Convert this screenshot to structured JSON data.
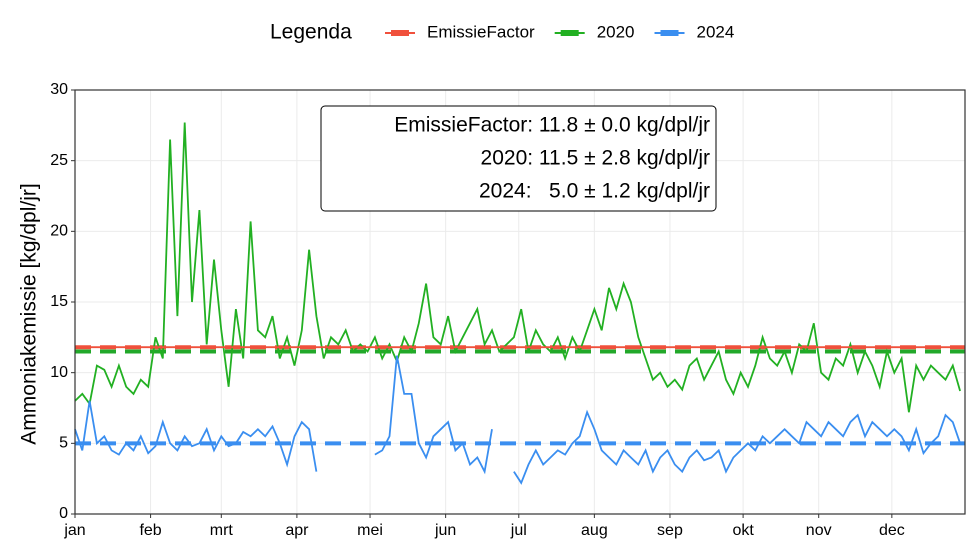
{
  "chart_data": {
    "type": "line",
    "legend_title": "Legenda",
    "y_label": "Ammoniakemissie [kg/dpl/jr]",
    "annotations": [
      "EmissieFactor: 11.8 ± 0.0 kg/dpl/jr",
      "2020: 11.5 ± 2.8 kg/dpl/jr",
      "2024:   5.0 ± 1.2 kg/dpl/jr"
    ],
    "xlim": [
      1,
      366
    ],
    "ylim": [
      0,
      30
    ],
    "yticks": [
      0,
      5,
      10,
      15,
      20,
      25,
      30
    ],
    "xticks": [
      {
        "value": 1,
        "label": "jan"
      },
      {
        "value": 32,
        "label": "feb"
      },
      {
        "value": 61,
        "label": "mrt"
      },
      {
        "value": 92,
        "label": "apr"
      },
      {
        "value": 122,
        "label": "mei"
      },
      {
        "value": 153,
        "label": "jun"
      },
      {
        "value": 183,
        "label": "jul"
      },
      {
        "value": 214,
        "label": "aug"
      },
      {
        "value": 245,
        "label": "sep"
      },
      {
        "value": 275,
        "label": "okt"
      },
      {
        "value": 306,
        "label": "nov"
      },
      {
        "value": 336,
        "label": "dec"
      }
    ],
    "grid": true,
    "hlines": [
      {
        "value": 11.8,
        "color": "#f0503c"
      },
      {
        "value": 11.5,
        "color": "#22a82a"
      },
      {
        "value": 5.0,
        "color": "#3a8ef0"
      }
    ],
    "x": [
      1,
      4,
      7,
      10,
      13,
      16,
      19,
      22,
      25,
      28,
      31,
      34,
      37,
      40,
      43,
      46,
      49,
      52,
      55,
      58,
      61,
      64,
      67,
      70,
      73,
      76,
      79,
      82,
      85,
      88,
      91,
      94,
      97,
      100,
      103,
      106,
      109,
      112,
      115,
      118,
      121,
      124,
      127,
      130,
      133,
      136,
      139,
      142,
      145,
      148,
      151,
      154,
      157,
      160,
      163,
      166,
      169,
      172,
      175,
      178,
      181,
      184,
      187,
      190,
      193,
      196,
      199,
      202,
      205,
      208,
      211,
      214,
      217,
      220,
      223,
      226,
      229,
      232,
      235,
      238,
      241,
      244,
      247,
      250,
      253,
      256,
      259,
      262,
      265,
      268,
      271,
      274,
      277,
      280,
      283,
      286,
      289,
      292,
      295,
      298,
      301,
      304,
      307,
      310,
      313,
      316,
      319,
      322,
      325,
      328,
      331,
      334,
      337,
      340,
      343,
      346,
      349,
      352,
      355,
      358,
      361,
      364
    ],
    "series": [
      {
        "name": "EmissieFactor",
        "color": "#f0503c",
        "x": [
          1,
          366
        ],
        "values": [
          11.8,
          11.8
        ]
      },
      {
        "name": "2020",
        "color": "#22b022",
        "values": [
          8.0,
          8.5,
          7.8,
          10.5,
          10.2,
          9.0,
          10.5,
          9.0,
          8.5,
          9.5,
          9.0,
          12.5,
          11.0,
          26.5,
          14.0,
          27.7,
          15.0,
          21.5,
          12.0,
          18.0,
          13.0,
          9.0,
          14.5,
          11.0,
          20.7,
          13.0,
          12.5,
          14.0,
          11.0,
          12.5,
          10.5,
          13.0,
          18.7,
          14.0,
          11.0,
          12.5,
          12.0,
          13.0,
          11.5,
          12.0,
          11.5,
          12.5,
          11.0,
          12.0,
          10.8,
          12.5,
          11.5,
          13.5,
          16.3,
          12.5,
          12.0,
          14.0,
          11.5,
          12.5,
          13.5,
          14.5,
          12.0,
          13.0,
          11.5,
          12.0,
          12.5,
          14.5,
          11.5,
          13.0,
          12.0,
          11.5,
          12.5,
          11.0,
          12.5,
          11.5,
          13.0,
          14.5,
          13.0,
          16.0,
          14.5,
          16.3,
          15.0,
          12.5,
          11.0,
          9.5,
          10.0,
          9.0,
          9.5,
          8.8,
          10.5,
          11.0,
          9.5,
          10.5,
          11.5,
          9.5,
          8.5,
          10.0,
          9.0,
          10.5,
          12.5,
          11.0,
          10.5,
          11.5,
          10.0,
          12.0,
          11.5,
          13.5,
          10.0,
          9.5,
          11.0,
          10.5,
          12.0,
          10.0,
          11.5,
          10.5,
          9.0,
          11.5,
          10.0,
          11.0,
          7.2,
          10.5,
          9.5,
          10.5,
          10.0,
          9.5,
          10.5,
          8.7
        ]
      },
      {
        "name": "2024",
        "color": "#3a8ef0",
        "values": [
          6.0,
          4.5,
          8.0,
          5.0,
          5.5,
          4.5,
          4.2,
          5.0,
          4.5,
          5.5,
          4.3,
          4.8,
          6.5,
          5.0,
          4.5,
          5.5,
          4.8,
          5.0,
          6.0,
          4.5,
          5.5,
          4.8,
          5.0,
          5.8,
          5.5,
          6.0,
          5.5,
          6.2,
          5.0,
          3.5,
          5.5,
          6.5,
          6.0,
          3.0,
          null,
          null,
          null,
          null,
          null,
          null,
          null,
          4.2,
          4.5,
          5.5,
          11.2,
          8.5,
          8.5,
          5.0,
          4.0,
          5.5,
          6.0,
          6.5,
          4.5,
          5.0,
          3.5,
          4.0,
          3.0,
          6.0,
          null,
          null,
          3.0,
          2.2,
          3.5,
          4.5,
          3.5,
          4.0,
          4.5,
          4.2,
          5.0,
          5.5,
          7.2,
          6.0,
          4.5,
          4.0,
          3.5,
          4.5,
          4.0,
          3.5,
          4.5,
          3.0,
          4.0,
          4.5,
          3.5,
          3.0,
          4.0,
          4.5,
          3.8,
          4.0,
          4.5,
          3.0,
          4.0,
          4.5,
          5.0,
          4.5,
          5.5,
          5.0,
          5.5,
          6.0,
          5.5,
          5.0,
          6.5,
          6.0,
          5.5,
          6.5,
          6.0,
          5.5,
          6.5,
          7.0,
          5.5,
          6.5,
          6.0,
          5.5,
          6.0,
          5.5,
          4.5,
          6.0,
          4.3,
          5.0,
          5.5,
          7.0,
          6.5,
          5.0
        ]
      }
    ]
  }
}
